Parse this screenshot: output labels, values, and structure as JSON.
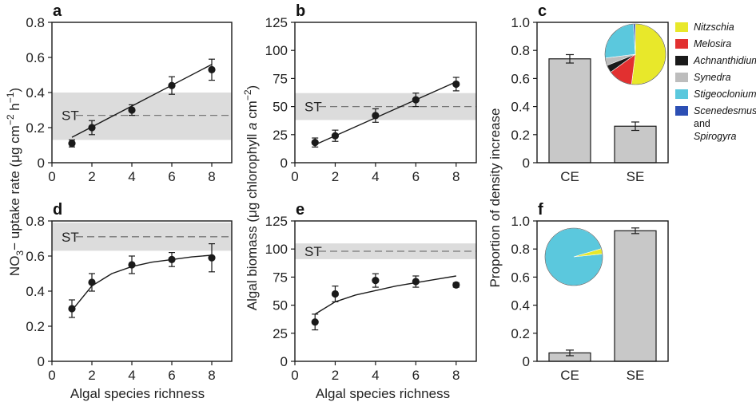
{
  "colors": {
    "band": "#dcdcdc",
    "bar": "#c8c8c8",
    "ink": "#1a1a1a",
    "st_line": "#777777"
  },
  "axes_labels": {
    "x_bottom_left": "Algal species richness",
    "x_bottom_mid": "Algal species richness",
    "y_left_line1": "NO",
    "y_left_sub": "3",
    "y_left_line2": "− uptake rate (μg cm",
    "y_left_sup1": "−2",
    "y_left_mid": " h",
    "y_left_sup2": "−1",
    "y_left_end": ")",
    "y_mid_pre": "Algal biomass (μg chlorophyll ",
    "y_mid_ital": "a",
    "y_mid_mid": " cm",
    "y_mid_sup": "−2",
    "y_mid_end": ")",
    "y_right": "Proportion of density increase",
    "st_label": "ST"
  },
  "chart_data": [
    {
      "id": "a",
      "panel_label": "a",
      "type": "scatter",
      "x": [
        1,
        2,
        4,
        6,
        8
      ],
      "y": [
        0.11,
        0.2,
        0.3,
        0.44,
        0.53
      ],
      "err": [
        0.02,
        0.04,
        0.03,
        0.05,
        0.06
      ],
      "fit": "linear",
      "fit_x_range": [
        1,
        8
      ],
      "fit_endpoints": [
        0.145,
        0.56
      ],
      "st": 0.27,
      "st_band": [
        0.13,
        0.4
      ],
      "xlim": [
        0,
        9
      ],
      "ylim": [
        0,
        0.8
      ],
      "xticks": [
        "0",
        "2",
        "4",
        "6",
        "8"
      ],
      "yticks": [
        "0",
        "0.2",
        "0.4",
        "0.6",
        "0.8"
      ]
    },
    {
      "id": "b",
      "panel_label": "b",
      "type": "scatter",
      "x": [
        1,
        2,
        4,
        6,
        8
      ],
      "y": [
        18,
        24,
        42,
        56,
        70
      ],
      "err": [
        4,
        5,
        6,
        6,
        6
      ],
      "fit": "linear",
      "fit_x_range": [
        1,
        8
      ],
      "fit_endpoints": [
        16,
        72
      ],
      "st": 50,
      "st_band": [
        38,
        62
      ],
      "xlim": [
        0,
        9
      ],
      "ylim": [
        0,
        125
      ],
      "xticks": [
        "0",
        "2",
        "4",
        "6",
        "8"
      ],
      "yticks": [
        "0",
        "25",
        "50",
        "75",
        "100",
        "125"
      ]
    },
    {
      "id": "c",
      "panel_label": "c",
      "type": "bar",
      "categories": [
        "CE",
        "SE"
      ],
      "values": [
        0.74,
        0.26
      ],
      "err": [
        0.03,
        0.03
      ],
      "ylim": [
        0,
        1.0
      ],
      "yticks": [
        "0",
        "0.2",
        "0.4",
        "0.6",
        "0.8",
        "1.0"
      ],
      "inset_pie": [
        {
          "name": "Nitzschia",
          "value": 52,
          "color": "#e8e82a"
        },
        {
          "name": "Melosira",
          "value": 13,
          "color": "#e23030"
        },
        {
          "name": "Achnanthidium",
          "value": 4,
          "color": "#1a1a1a"
        },
        {
          "name": "Synedra",
          "value": 4,
          "color": "#bdbdbd"
        },
        {
          "name": "Stigeoclonium",
          "value": 26,
          "color": "#5bc8dd"
        },
        {
          "name": "Scenedesmus and Spirogyra",
          "value": 1,
          "color": "#2c4fb4"
        }
      ]
    },
    {
      "id": "d",
      "panel_label": "d",
      "type": "scatter",
      "x": [
        1,
        2,
        4,
        6,
        8
      ],
      "y": [
        0.3,
        0.45,
        0.55,
        0.58,
        0.59
      ],
      "err": [
        0.05,
        0.05,
        0.05,
        0.04,
        0.08
      ],
      "fit": "saturating",
      "fit_curve": [
        [
          1,
          0.29
        ],
        [
          2,
          0.43
        ],
        [
          3,
          0.5
        ],
        [
          4,
          0.54
        ],
        [
          5,
          0.565
        ],
        [
          6,
          0.58
        ],
        [
          7,
          0.595
        ],
        [
          8,
          0.605
        ]
      ],
      "st": 0.71,
      "st_band": [
        0.63,
        0.79
      ],
      "xlim": [
        0,
        9
      ],
      "ylim": [
        0,
        0.8
      ],
      "xticks": [
        "0",
        "2",
        "4",
        "6",
        "8"
      ],
      "yticks": [
        "0",
        "0.2",
        "0.4",
        "0.6",
        "0.8"
      ]
    },
    {
      "id": "e",
      "panel_label": "e",
      "type": "scatter",
      "x": [
        1,
        2,
        4,
        6,
        8
      ],
      "y": [
        35,
        60,
        72,
        71,
        68
      ],
      "err": [
        7,
        7,
        6,
        5,
        2
      ],
      "fit": "saturating",
      "fit_curve": [
        [
          1,
          42
        ],
        [
          2,
          53
        ],
        [
          3,
          59
        ],
        [
          4,
          63
        ],
        [
          5,
          67
        ],
        [
          6,
          70
        ],
        [
          7,
          73
        ],
        [
          8,
          76
        ]
      ],
      "st": 98,
      "st_band": [
        91,
        105
      ],
      "xlim": [
        0,
        9
      ],
      "ylim": [
        0,
        125
      ],
      "xticks": [
        "0",
        "2",
        "4",
        "6",
        "8"
      ],
      "yticks": [
        "0",
        "25",
        "50",
        "75",
        "100",
        "125"
      ]
    },
    {
      "id": "f",
      "panel_label": "f",
      "type": "bar",
      "categories": [
        "CE",
        "SE"
      ],
      "values": [
        0.06,
        0.93
      ],
      "err": [
        0.02,
        0.02
      ],
      "ylim": [
        0,
        1.0
      ],
      "yticks": [
        "0",
        "0.2",
        "0.4",
        "0.6",
        "0.8",
        "1.0"
      ],
      "inset_pie": [
        {
          "name": "Stigeoclonium",
          "value": 97,
          "color": "#5bc8dd"
        },
        {
          "name": "Nitzschia",
          "value": 3,
          "color": "#e8e82a"
        }
      ]
    }
  ],
  "legend": [
    {
      "name": "Nitzschia",
      "color": "#e8e82a"
    },
    {
      "name": "Melosira",
      "color": "#e23030"
    },
    {
      "name": "Achnanthidium",
      "color": "#1a1a1a"
    },
    {
      "name": "Synedra",
      "color": "#bdbdbd"
    },
    {
      "name": "Stigeoclonium",
      "color": "#5bc8dd"
    },
    {
      "name": "Scenedesmus",
      "name2": "and",
      "name3": "Spirogyra",
      "color": "#2c4fb4"
    }
  ]
}
